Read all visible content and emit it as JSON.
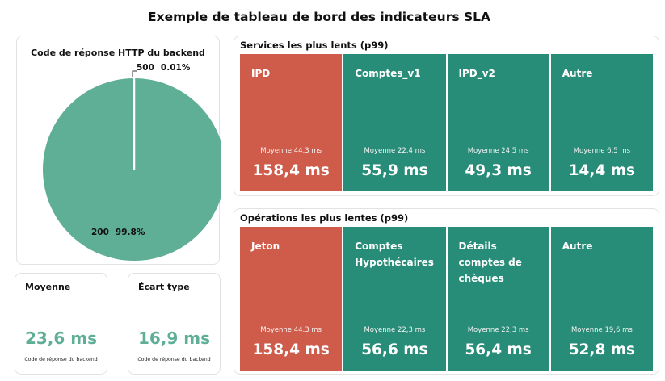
{
  "title": "Exemple de tableau de bord des indicateurs SLA",
  "pie_card": {
    "title": "Code de réponse HTTP du backend",
    "slices": [
      {
        "code": "200",
        "percent_label": "99.8%",
        "value": 99.8,
        "color": "#5fae96"
      },
      {
        "code": "500",
        "percent_label": "0.01%",
        "value": 0.01,
        "color": "#5fae96"
      }
    ]
  },
  "avg_card": {
    "title": "Moyenne",
    "value": "23,6 ms",
    "subtitle": "Code de réponse du backend"
  },
  "std_card": {
    "title": "Écart type",
    "value": "16,9 ms",
    "subtitle": "Code de réponse du backend"
  },
  "services": {
    "title": "Services les plus lents (p99)",
    "tiles": [
      {
        "name": "IPD",
        "avg": "Moyenne 44,3 ms",
        "p99": "158,4 ms",
        "color": "red"
      },
      {
        "name": "Comptes_v1",
        "avg": "Moyenne  22,4 ms",
        "p99": "55,9 ms",
        "color": "green"
      },
      {
        "name": "IPD_v2",
        "avg": "Moyenne 24,5 ms",
        "p99": "49,3 ms",
        "color": "green"
      },
      {
        "name": "Autre",
        "avg": "Moyenne 6,5 ms",
        "p99": "14,4 ms",
        "color": "green"
      }
    ]
  },
  "operations": {
    "title": "Opérations les plus lentes (p99)",
    "tiles": [
      {
        "name": "Jeton",
        "avg": "Moyenne 44.3 ms",
        "p99": "158,4 ms",
        "color": "red"
      },
      {
        "name": "Comptes Hypothécaires",
        "avg": "Moyenne 22,3 ms",
        "p99": "56,6 ms",
        "color": "green"
      },
      {
        "name": "Détails comptes de chèques",
        "avg": "Moyenne 22,3 ms",
        "p99": "56,4 ms",
        "color": "green"
      },
      {
        "name": "Autre",
        "avg": "Moyenne 19,6 ms",
        "p99": "52,8 ms",
        "color": "green"
      }
    ]
  }
}
